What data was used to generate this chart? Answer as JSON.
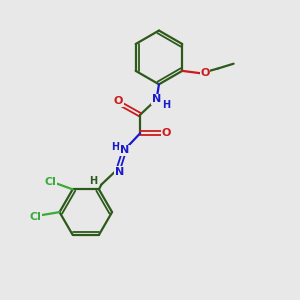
{
  "background_color": "#e8e8e8",
  "bond_color": "#2d5a1b",
  "nitrogen_color": "#1a1acc",
  "oxygen_color": "#cc1a1a",
  "chlorine_color": "#3aaa3a",
  "figsize": [
    3.0,
    3.0
  ],
  "dpi": 100,
  "xlim": [
    0,
    10
  ],
  "ylim": [
    0,
    10
  ]
}
